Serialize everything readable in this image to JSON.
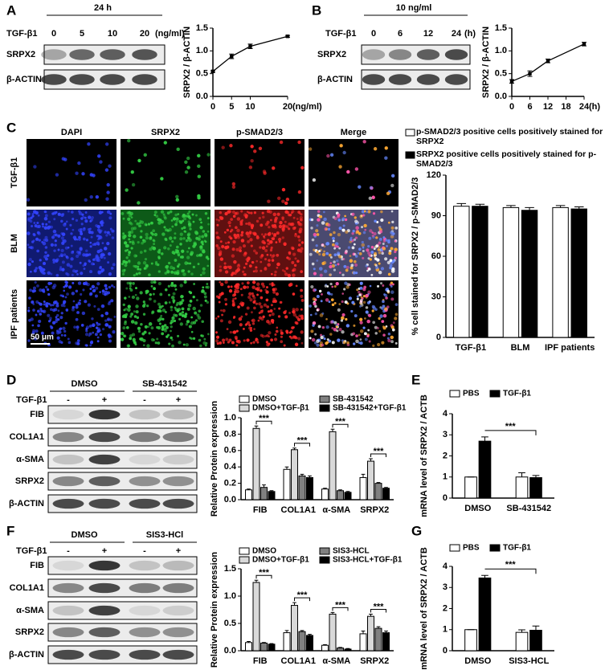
{
  "panel_labels": [
    "A",
    "B",
    "C",
    "D",
    "E",
    "F",
    "G"
  ],
  "blot_a": {
    "header": "24 h",
    "treatment": "TGF-β1",
    "lanes": [
      "0",
      "5",
      "10",
      "20"
    ],
    "unit": "(ng/ml)",
    "rows": [
      "SRPX2",
      "β-ACTIN"
    ]
  },
  "blot_b": {
    "header": "10 ng/ml",
    "treatment": "TGF-β1",
    "lanes": [
      "0",
      "6",
      "12",
      "24"
    ],
    "unit": "(h)",
    "rows": [
      "SRPX2",
      "β-ACTIN"
    ]
  },
  "images_c": {
    "columns": [
      "DAPI",
      "SRPX2",
      "p-SMAD2/3",
      "Merge"
    ],
    "rows": [
      "TGF-β1",
      "BLM",
      "IPF patients"
    ],
    "scale_bar": "50 μm"
  },
  "blot_d": {
    "groups": [
      "DMSO",
      "SB-431542"
    ],
    "treatment": "TGF-β1",
    "lanes": [
      "-",
      "+",
      "-",
      "+"
    ],
    "rows": [
      "FIB",
      "COL1A1",
      "α-SMA",
      "SRPX2",
      "β-ACTIN"
    ]
  },
  "blot_f": {
    "groups": [
      "DMSO",
      "SIS3-HCl"
    ],
    "treatment": "TGF-β1",
    "lanes": [
      "-",
      "+",
      "-",
      "+"
    ],
    "rows": [
      "FIB",
      "COL1A1",
      "α-SMA",
      "SRPX2",
      "β-ACTIN"
    ]
  },
  "chart_data": [
    {
      "type": "line",
      "x": [
        0,
        5,
        10,
        20
      ],
      "values": [
        0.55,
        0.88,
        1.1,
        1.32
      ],
      "errors": [
        0.02,
        0.05,
        0.05,
        0.02
      ],
      "xlim": [
        0,
        20
      ],
      "xticks": [
        0,
        5,
        10,
        20
      ],
      "x_unit": "(ng/ml)",
      "ylim": [
        0,
        1.5
      ],
      "yticks": [
        {
          "value": 0,
          "label": "0.0"
        },
        0.5,
        {
          "value": 1,
          "label": "1.0"
        },
        1.5
      ],
      "y_label": "SRPX2 / β-ACTIN",
      "color": "#000000"
    },
    {
      "type": "line",
      "x": [
        0,
        6,
        12,
        24
      ],
      "values": [
        0.33,
        0.5,
        0.78,
        1.15
      ],
      "errors": [
        0.04,
        0.06,
        0.04,
        0.04
      ],
      "xlim": [
        0,
        24
      ],
      "xticks": [
        0,
        6,
        12,
        18,
        24
      ],
      "x_unit": "(h)",
      "ylim": [
        0,
        1.5
      ],
      "yticks": [
        {
          "value": 0,
          "label": "0.0"
        },
        0.5,
        {
          "value": 1,
          "label": "1.0"
        },
        1.5
      ],
      "y_label": "SRPX2 / β-ACTIN",
      "color": "#000000"
    },
    {
      "type": "bar",
      "categories": [
        "TGF-β1",
        "BLM",
        "IPF patients"
      ],
      "series": [
        {
          "name": "p-SMAD2/3 positive cells positively stained for SRPX2",
          "color": "#ffffff",
          "values": [
            97,
            96,
            96
          ],
          "errors": [
            2,
            1.5,
            1.5
          ]
        },
        {
          "name": "SRPX2 positive cells positively stained for p-SMAD2/3",
          "color": "#000000",
          "values": [
            97,
            94,
            95
          ],
          "errors": [
            1.5,
            2,
            1.5
          ]
        }
      ],
      "ylim": [
        0,
        120
      ],
      "yticks": [
        0,
        30,
        60,
        90,
        120
      ],
      "y_label": "% cell stained for SRPX2 / p-SMAD2/3"
    },
    {
      "type": "bar",
      "categories": [
        "FIB",
        "COL1A1",
        "α-SMA",
        "SRPX2"
      ],
      "series": [
        {
          "name": "DMSO",
          "color": "#ffffff",
          "values": [
            0.12,
            0.37,
            0.13,
            0.27
          ],
          "errors": [
            0.01,
            0.03,
            0.01,
            0.04
          ]
        },
        {
          "name": "DMSO+TGF-β1",
          "color": "#d9d9d9",
          "values": [
            0.87,
            0.61,
            0.83,
            0.47
          ],
          "errors": [
            0.03,
            0.02,
            0.03,
            0.03
          ]
        },
        {
          "name": "SB-431542",
          "color": "#808080",
          "values": [
            0.15,
            0.29,
            0.11,
            0.2
          ],
          "errors": [
            0.03,
            0.02,
            0.01,
            0.01
          ]
        },
        {
          "name": "SB-431542+TGF-β1",
          "color": "#000000",
          "values": [
            0.1,
            0.27,
            0.09,
            0.14
          ],
          "errors": [
            0.01,
            0.02,
            0.01,
            0.01
          ]
        }
      ],
      "ylim": [
        0,
        1
      ],
      "yticks": [
        {
          "value": 0,
          "label": "0.0"
        },
        0.2,
        0.4,
        0.6,
        0.8,
        {
          "value": 1,
          "label": "1.0"
        }
      ],
      "y_label": "Relative Protein expression",
      "significance": [
        "***",
        "***",
        "***",
        "***"
      ]
    },
    {
      "type": "bar",
      "categories": [
        "DMSO",
        "SB-431542"
      ],
      "series": [
        {
          "name": "PBS",
          "color": "#ffffff",
          "values": [
            1,
            1
          ],
          "errors": [
            0,
            0.2
          ]
        },
        {
          "name": "TGF-β1",
          "color": "#000000",
          "values": [
            2.7,
            0.97
          ],
          "errors": [
            0.2,
            0.1
          ]
        }
      ],
      "ylim": [
        0,
        4
      ],
      "yticks": [
        0,
        1,
        2,
        3,
        4
      ],
      "y_label": "mRNA level of SRPX2 / ACTB",
      "significance": "***"
    },
    {
      "type": "bar",
      "categories": [
        "FIB",
        "COL1A1",
        "α-SMA",
        "SRPX2"
      ],
      "series": [
        {
          "name": "DMSO",
          "color": "#ffffff",
          "values": [
            0.15,
            0.33,
            0.1,
            0.31
          ],
          "errors": [
            0.02,
            0.04,
            0.01,
            0.05
          ]
        },
        {
          "name": "DMSO+TGF-β1",
          "color": "#d9d9d9",
          "values": [
            1.25,
            0.83,
            0.67,
            0.63
          ],
          "errors": [
            0.04,
            0.05,
            0.03,
            0.04
          ]
        },
        {
          "name": "SIS3-HCL",
          "color": "#808080",
          "values": [
            0.14,
            0.35,
            0.05,
            0.41
          ],
          "errors": [
            0.01,
            0.02,
            0.01,
            0.03
          ]
        },
        {
          "name": "SIS3-HCL+TGF-β1",
          "color": "#000000",
          "values": [
            0.12,
            0.28,
            0.03,
            0.33
          ],
          "errors": [
            0.01,
            0.02,
            0.01,
            0.03
          ]
        }
      ],
      "ylim": [
        0,
        1.5
      ],
      "yticks": [
        {
          "value": 0,
          "label": "0.0"
        },
        0.5,
        {
          "value": 1,
          "label": "1.0"
        },
        1.5
      ],
      "y_label": "Relative Protein expression",
      "significance": [
        "***",
        "***",
        "***",
        "***"
      ]
    },
    {
      "type": "bar",
      "categories": [
        "DMSO",
        "SIS3-HCL"
      ],
      "series": [
        {
          "name": "PBS",
          "color": "#ffffff",
          "values": [
            1,
            0.87
          ],
          "errors": [
            0,
            0.12
          ]
        },
        {
          "name": "TGF-β1",
          "color": "#000000",
          "values": [
            3.45,
            0.97
          ],
          "errors": [
            0.12,
            0.2
          ]
        }
      ],
      "ylim": [
        0,
        4
      ],
      "yticks": [
        0,
        1,
        2,
        3,
        4
      ],
      "y_label": "mRNA level of SRPX2 / ACTB",
      "significance": "***"
    }
  ]
}
